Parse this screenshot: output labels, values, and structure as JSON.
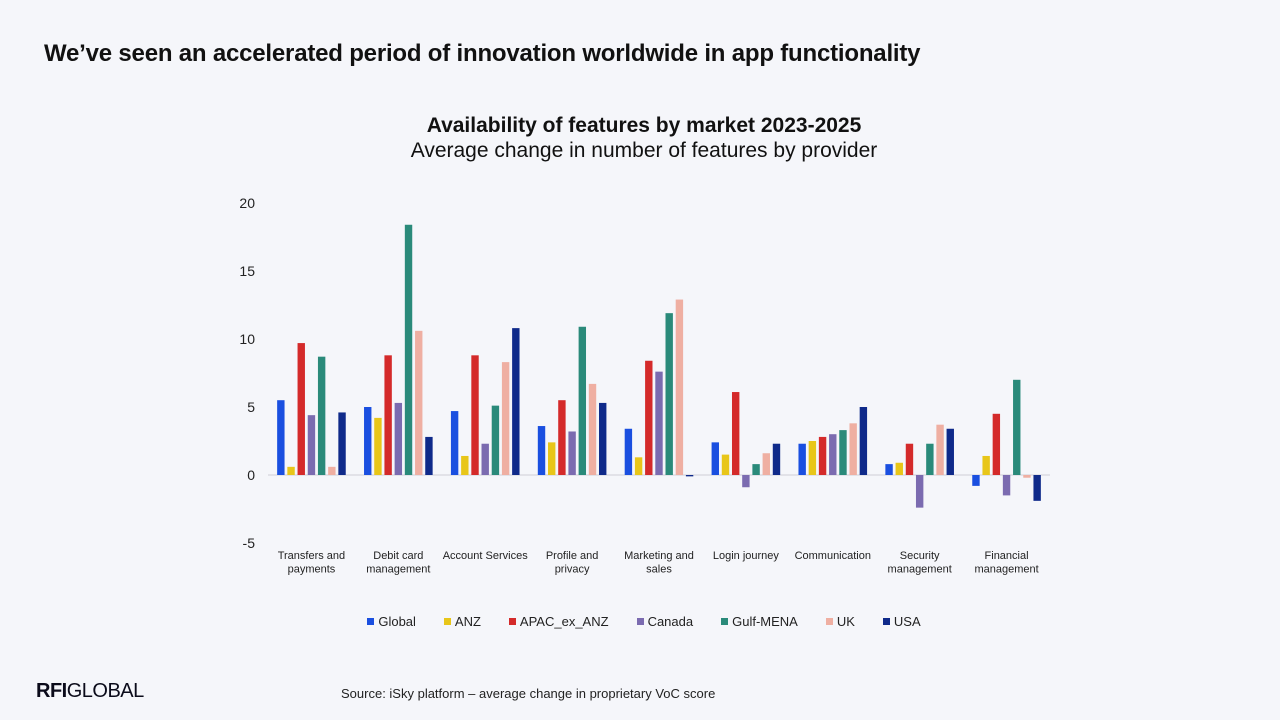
{
  "header": {
    "headline": "We’ve seen an accelerated period of innovation worldwide in app functionality"
  },
  "footer": {
    "brand_bold": "RFI",
    "brand_rest": "GLOBAL",
    "source": "Source: iSky platform – average change in proprietary VoC score"
  },
  "chart_data": {
    "type": "bar",
    "title": "Availability of features by market 2023-2025",
    "subtitle": "Average change in number of features by provider",
    "xlabel": "",
    "ylabel": "",
    "ylim": [
      -5,
      20
    ],
    "yticks": [
      -5,
      0,
      5,
      10,
      15,
      20
    ],
    "grid": false,
    "legend_position": "bottom",
    "categories": [
      [
        "Transfers and",
        "payments"
      ],
      [
        "Debit card",
        "management"
      ],
      [
        "Account Services"
      ],
      [
        "Profile and",
        "privacy"
      ],
      [
        "Marketing and",
        "sales"
      ],
      [
        "Login journey"
      ],
      [
        "Communication"
      ],
      [
        "Security",
        "management"
      ],
      [
        "Financial",
        "management"
      ]
    ],
    "series": [
      {
        "name": "Global",
        "color": "#1a4fe0",
        "values": [
          5.5,
          5.0,
          4.7,
          3.6,
          3.4,
          2.4,
          2.3,
          0.8,
          -0.8
        ]
      },
      {
        "name": "ANZ",
        "color": "#e8c619",
        "values": [
          0.6,
          4.2,
          1.4,
          2.4,
          1.3,
          1.5,
          2.5,
          0.9,
          1.4
        ]
      },
      {
        "name": "APAC_ex_ANZ",
        "color": "#d42a2a",
        "values": [
          9.7,
          8.8,
          8.8,
          5.5,
          8.4,
          6.1,
          2.8,
          2.3,
          4.5
        ]
      },
      {
        "name": "Canada",
        "color": "#7b6bb0",
        "values": [
          4.4,
          5.3,
          2.3,
          3.2,
          7.6,
          -0.9,
          3.0,
          -2.4,
          -1.5
        ]
      },
      {
        "name": "Gulf-MENA",
        "color": "#2a8a7a",
        "values": [
          8.7,
          18.4,
          5.1,
          10.9,
          11.9,
          0.8,
          3.3,
          2.3,
          7.0
        ]
      },
      {
        "name": "UK",
        "color": "#efafa2",
        "values": [
          0.6,
          10.6,
          8.3,
          6.7,
          12.9,
          1.6,
          3.8,
          3.7,
          -0.2
        ]
      },
      {
        "name": "USA",
        "color": "#0f2a8a",
        "values": [
          4.6,
          2.8,
          10.8,
          5.3,
          -0.1,
          2.3,
          5.0,
          3.4,
          -1.9
        ]
      }
    ]
  }
}
